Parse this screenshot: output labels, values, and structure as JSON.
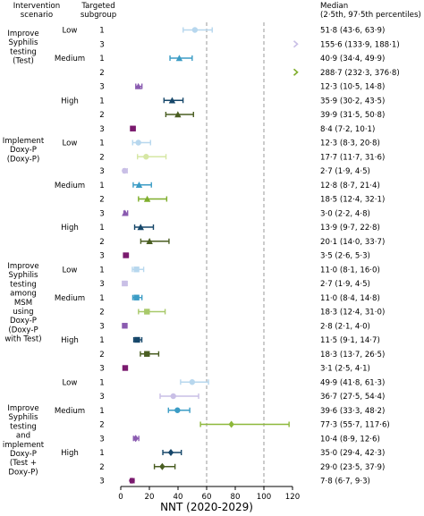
{
  "chart_data": {
    "type": "forest",
    "headers": {
      "scenario": [
        "Intervention",
        "scenario"
      ],
      "subgroup": [
        "Targeted",
        "subgroup"
      ],
      "median": [
        "Median",
        "(2·5th, 97·5th percentiles)"
      ]
    },
    "xlabel": "NNT (2020-2029)",
    "xlim": [
      0,
      120
    ],
    "xticks": [
      "0",
      "20",
      "40",
      "60",
      "80",
      "100",
      "120"
    ],
    "xtick_values": [
      0,
      20,
      40,
      60,
      80,
      100,
      120
    ],
    "reference_lines": [
      60,
      100
    ],
    "colors": {
      "low": "#bcd8ee",
      "medium": "#3f9ec4",
      "high": "#173f5f"
    },
    "scenarios": [
      {
        "label": [
          "Improve",
          "Syphilis",
          "testing",
          "(Test)"
        ],
        "groups": [
          {
            "level": "Low",
            "rows": [
              {
                "subgroup": "1",
                "median": 51.8,
                "lo": 43.6,
                "hi": 63.9,
                "text": "51·8 (43·6, 63·9)",
                "color": "#b7d7ee",
                "marker": "circle"
              },
              {
                "subgroup": "3",
                "median": 155.6,
                "lo": 133.9,
                "hi": 188.1,
                "text": "155·6 (133·9, 188·1)",
                "color": "#c9bfe6",
                "marker": "circle",
                "offscale": true
              }
            ]
          },
          {
            "level": "Medium",
            "rows": [
              {
                "subgroup": "1",
                "median": 40.9,
                "lo": 34.4,
                "hi": 49.9,
                "text": "40·9 (34·4, 49·9)",
                "color": "#3b9cc5",
                "marker": "triangle"
              },
              {
                "subgroup": "2",
                "median": 288.7,
                "lo": 232.3,
                "hi": 376.8,
                "text": "288·7 (232·3, 376·8)",
                "color": "#7fae2c",
                "marker": "triangle",
                "offscale": true
              },
              {
                "subgroup": "3",
                "median": 12.3,
                "lo": 10.5,
                "hi": 14.8,
                "text": "12·3 (10·5, 14·8)",
                "color": "#8a5bb0",
                "marker": "triangle"
              }
            ]
          },
          {
            "level": "High",
            "rows": [
              {
                "subgroup": "1",
                "median": 35.9,
                "lo": 30.2,
                "hi": 43.5,
                "text": "35·9 (30·2, 43·5)",
                "color": "#16476a",
                "marker": "triangle"
              },
              {
                "subgroup": "2",
                "median": 39.9,
                "lo": 31.5,
                "hi": 50.8,
                "text": "39·9 (31·5, 50·8)",
                "color": "#4a5e22",
                "marker": "triangle"
              },
              {
                "subgroup": "3",
                "median": 8.4,
                "lo": 7.2,
                "hi": 10.1,
                "text": "8·4 (7·2, 10·1)",
                "color": "#7a1a6e",
                "marker": "square"
              }
            ]
          }
        ]
      },
      {
        "label": [
          "Implement",
          "Doxy-P",
          "(Doxy-P)"
        ],
        "groups": [
          {
            "level": "Low",
            "rows": [
              {
                "subgroup": "1",
                "median": 12.3,
                "lo": 8.3,
                "hi": 20.8,
                "text": "12·3 (8·3, 20·8)",
                "color": "#b7d7ee",
                "marker": "circle"
              },
              {
                "subgroup": "2",
                "median": 17.7,
                "lo": 11.7,
                "hi": 31.6,
                "text": "17·7 (11·7, 31·6)",
                "color": "#d6e7a4",
                "marker": "circle"
              },
              {
                "subgroup": "3",
                "median": 2.7,
                "lo": 1.9,
                "hi": 4.5,
                "text": "2·7 (1·9, 4·5)",
                "color": "#c9bfe6",
                "marker": "circle"
              }
            ]
          },
          {
            "level": "Medium",
            "rows": [
              {
                "subgroup": "1",
                "median": 12.8,
                "lo": 8.7,
                "hi": 21.4,
                "text": "12·8 (8·7, 21·4)",
                "color": "#3b9cc5",
                "marker": "triangle"
              },
              {
                "subgroup": "2",
                "median": 18.5,
                "lo": 12.4,
                "hi": 32.1,
                "text": "18·5 (12·4, 32·1)",
                "color": "#7fae2c",
                "marker": "triangle"
              },
              {
                "subgroup": "3",
                "median": 3.0,
                "lo": 2.2,
                "hi": 4.8,
                "text": "3·0 (2·2, 4·8)",
                "color": "#8a5bb0",
                "marker": "triangle"
              }
            ]
          },
          {
            "level": "High",
            "rows": [
              {
                "subgroup": "1",
                "median": 13.9,
                "lo": 9.7,
                "hi": 22.8,
                "text": "13·9 (9·7, 22·8)",
                "color": "#16476a",
                "marker": "triangle"
              },
              {
                "subgroup": "2",
                "median": 20.1,
                "lo": 14.0,
                "hi": 33.7,
                "text": "20·1 (14·0, 33·7)",
                "color": "#4a5e22",
                "marker": "triangle"
              },
              {
                "subgroup": "3",
                "median": 3.5,
                "lo": 2.6,
                "hi": 5.3,
                "text": "3·5 (2·6, 5·3)",
                "color": "#7a1a6e",
                "marker": "square"
              }
            ]
          }
        ]
      },
      {
        "label": [
          "Improve",
          "Syphilis",
          "testing",
          "among",
          "MSM",
          "using",
          "Doxy-P",
          "(Doxy-P",
          "with Test)"
        ],
        "groups": [
          {
            "level": "Low",
            "rows": [
              {
                "subgroup": "1",
                "median": 11.0,
                "lo": 8.1,
                "hi": 16.0,
                "text": "11·0 (8·1, 16·0)",
                "color": "#b7d7ee",
                "marker": "square"
              },
              {
                "subgroup": "3",
                "median": 2.7,
                "lo": 1.9,
                "hi": 4.5,
                "text": "2·7 (1·9, 4·5)",
                "color": "#c9bfe6",
                "marker": "square"
              }
            ]
          },
          {
            "level": "Medium",
            "rows": [
              {
                "subgroup": "1",
                "median": 11.0,
                "lo": 8.4,
                "hi": 14.8,
                "text": "11·0 (8·4, 14·8)",
                "color": "#3b9cc5",
                "marker": "square"
              },
              {
                "subgroup": "2",
                "median": 18.3,
                "lo": 12.4,
                "hi": 31.0,
                "text": "18·3 (12·4, 31·0)",
                "color": "#a8c96a",
                "marker": "square"
              },
              {
                "subgroup": "3",
                "median": 2.8,
                "lo": 2.1,
                "hi": 4.0,
                "text": "2·8 (2·1, 4·0)",
                "color": "#8a5bb0",
                "marker": "square"
              }
            ]
          },
          {
            "level": "High",
            "rows": [
              {
                "subgroup": "1",
                "median": 11.5,
                "lo": 9.1,
                "hi": 14.7,
                "text": "11·5 (9·1, 14·7)",
                "color": "#16476a",
                "marker": "square"
              },
              {
                "subgroup": "2",
                "median": 18.3,
                "lo": 13.7,
                "hi": 26.5,
                "text": "18·3 (13·7, 26·5)",
                "color": "#4a5e22",
                "marker": "square"
              },
              {
                "subgroup": "3",
                "median": 3.1,
                "lo": 2.5,
                "hi": 4.1,
                "text": "3·1 (2·5, 4·1)",
                "color": "#7a1a6e",
                "marker": "square"
              }
            ]
          }
        ]
      },
      {
        "label": [
          "Improve",
          "Syphilis",
          "testing",
          "and",
          "implement",
          "Doxy-P",
          "(Test +",
          "Doxy-P)"
        ],
        "groups": [
          {
            "level": "Low",
            "rows": [
              {
                "subgroup": "1",
                "median": 49.9,
                "lo": 41.8,
                "hi": 61.3,
                "text": "49·9 (41·8, 61·3)",
                "color": "#b7d7ee",
                "marker": "circle"
              },
              {
                "subgroup": "3",
                "median": 36.7,
                "lo": 27.5,
                "hi": 54.4,
                "text": "36·7 (27·5, 54·4)",
                "color": "#c9bfe6",
                "marker": "circle"
              }
            ]
          },
          {
            "level": "Medium",
            "rows": [
              {
                "subgroup": "1",
                "median": 39.6,
                "lo": 33.3,
                "hi": 48.2,
                "text": "39·6 (33·3, 48·2)",
                "color": "#3b9cc5",
                "marker": "circle"
              },
              {
                "subgroup": "2",
                "median": 77.3,
                "lo": 55.7,
                "hi": 117.6,
                "text": "77·3 (55·7, 117·6)",
                "color": "#8db83a",
                "marker": "diamond"
              },
              {
                "subgroup": "3",
                "median": 10.4,
                "lo": 8.9,
                "hi": 12.6,
                "text": "10·4 (8·9, 12·6)",
                "color": "#8a5bb0",
                "marker": "diamond"
              }
            ]
          },
          {
            "level": "High",
            "rows": [
              {
                "subgroup": "1",
                "median": 35.0,
                "lo": 29.4,
                "hi": 42.3,
                "text": "35·0 (29·4, 42·3)",
                "color": "#16476a",
                "marker": "diamond"
              },
              {
                "subgroup": "2",
                "median": 29.0,
                "lo": 23.5,
                "hi": 37.9,
                "text": "29·0 (23·5, 37·9)",
                "color": "#4a5e22",
                "marker": "diamond"
              },
              {
                "subgroup": "3",
                "median": 7.8,
                "lo": 6.7,
                "hi": 9.3,
                "text": "7·8 (6·7, 9·3)",
                "color": "#7a1a6e",
                "marker": "circle"
              }
            ]
          }
        ]
      }
    ]
  }
}
